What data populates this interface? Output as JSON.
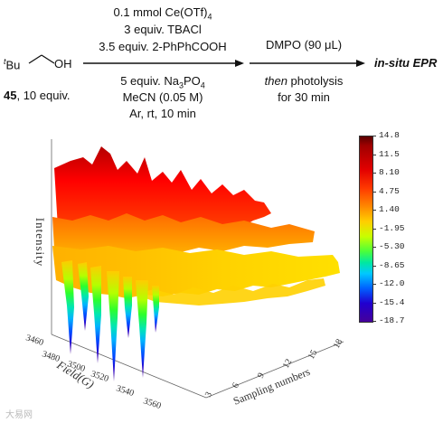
{
  "scheme": {
    "reactant_label": "OH",
    "reactant_prefix": "Bu",
    "reactant_prefix_sup": "t",
    "compound_number": "45",
    "compound_equiv": ", 10 equiv.",
    "above_arrow_1": [
      "0.1 mmol Ce(OTf)",
      "4"
    ],
    "above_arrow_2": "3 equiv. TBACl",
    "above_arrow_3": "3.5 equiv. 2-PhPhCOOH",
    "below_arrow_1": [
      "5 equiv. Na",
      "3",
      "PO",
      "4"
    ],
    "below_arrow_2": "MeCN (0.05 M)",
    "below_arrow_3": "Ar, rt, 10 min",
    "step2_above": "DMPO (90 μL)",
    "step2_below_italic": "then",
    "step2_below_rest": " photolysis",
    "step2_below_2": "for 30 min",
    "product": "in-situ EPR"
  },
  "chart_data": {
    "type": "surface",
    "zlabel": "Intensity",
    "ylabel": "Field(G)",
    "xlabel": "Sampling numbers",
    "field_ticks": [
      3460,
      3480,
      3500,
      3520,
      3540,
      3560
    ],
    "sampling_ticks": [
      3,
      6,
      9,
      12,
      15,
      18
    ],
    "colorbar_ticks": [
      "14.8",
      "11.5",
      "8.10",
      "4.75",
      "1.40",
      "-1.95",
      "-5.30",
      "-8.65",
      "-12.0",
      "-15.4",
      "-18.7"
    ],
    "colorbar_range": [
      -18.7,
      14.8
    ],
    "colormap": "jet"
  },
  "watermark": "大易网"
}
